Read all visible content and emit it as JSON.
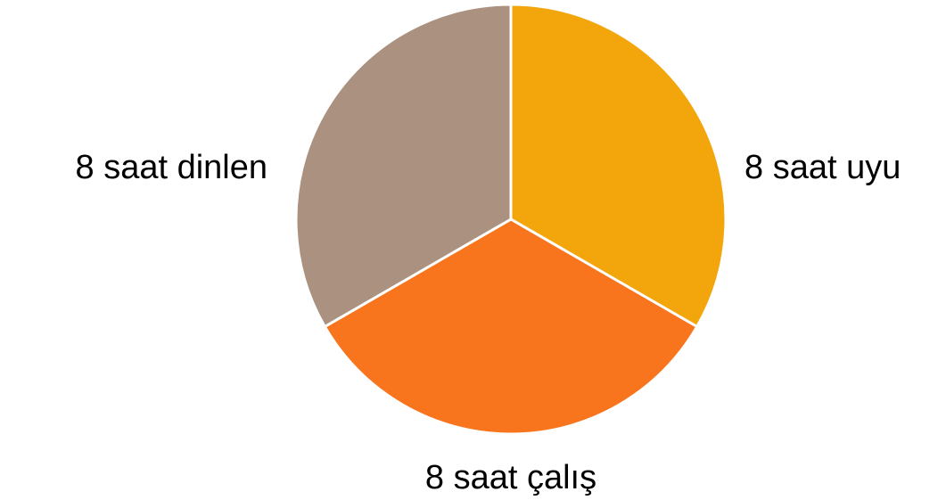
{
  "chart_data": {
    "type": "pie",
    "title": "",
    "categories": [
      "8 saat uyu",
      "8 saat çalış",
      "8 saat dinlen"
    ],
    "values": [
      1,
      1,
      1
    ],
    "colors": [
      "#F3A50C",
      "#F8751D",
      "#AB9180"
    ],
    "slice_border_color": "#ffffff",
    "label_placement": "outside",
    "start_angle_deg": 0,
    "direction": "clockwise",
    "legend": "none"
  }
}
